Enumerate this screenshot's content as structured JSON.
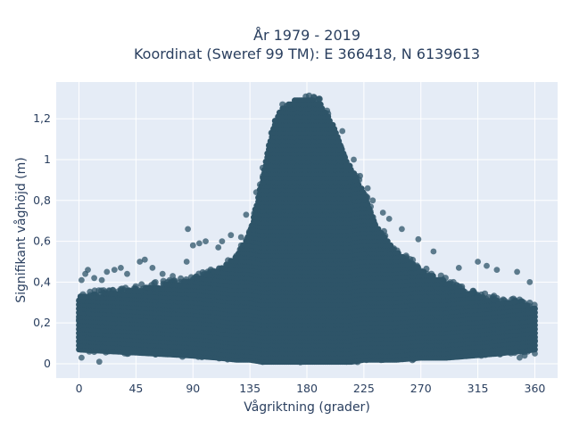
{
  "chart_data": {
    "type": "scatter",
    "title_lines": [
      "År 1979 - 2019",
      "Koordinat (Sweref 99 TM): E 366418, N 6139613"
    ],
    "xlabel": "Vågriktning (grader)",
    "ylabel": "Signifikant våghöjd (m)",
    "xlim": [
      -18,
      378
    ],
    "ylim": [
      -0.07,
      1.38
    ],
    "xticks": [
      0,
      45,
      90,
      135,
      180,
      225,
      270,
      315,
      360
    ],
    "xtick_labels": [
      "0",
      "45",
      "90",
      "135",
      "180",
      "225",
      "270",
      "315",
      "360"
    ],
    "yticks": [
      0,
      0.2,
      0.4,
      0.6,
      0.8,
      1.0,
      1.2
    ],
    "ytick_labels": [
      "0",
      "0,2",
      "0,4",
      "0,6",
      "0,8",
      "1",
      "1,2"
    ],
    "grid": true,
    "marker_color": "#2e5468",
    "plot_background": "#e5ecf6",
    "envelope": {
      "direction_deg": [
        0,
        30,
        60,
        90,
        110,
        125,
        135,
        145,
        150,
        155,
        160,
        170,
        180,
        190,
        200,
        210,
        215,
        225,
        235,
        250,
        270,
        290,
        310,
        330,
        345,
        360
      ],
      "upper_hs_m": [
        0.35,
        0.37,
        0.4,
        0.43,
        0.48,
        0.55,
        0.67,
        0.93,
        1.1,
        1.22,
        1.27,
        1.31,
        1.32,
        1.3,
        1.2,
        1.03,
        0.98,
        0.86,
        0.7,
        0.57,
        0.48,
        0.42,
        0.36,
        0.33,
        0.32,
        0.3
      ],
      "lower_hs_m": [
        0.06,
        0.05,
        0.04,
        0.03,
        0.02,
        0.01,
        0.01,
        0.0,
        0.0,
        0.0,
        0.0,
        0.0,
        0.0,
        0.0,
        0.0,
        0.0,
        0.0,
        0.01,
        0.01,
        0.01,
        0.02,
        0.02,
        0.03,
        0.04,
        0.05,
        0.06
      ]
    },
    "outliers": [
      {
        "x": 2,
        "y": 0.41
      },
      {
        "x": 5,
        "y": 0.44
      },
      {
        "x": 7,
        "y": 0.46
      },
      {
        "x": 12,
        "y": 0.42
      },
      {
        "x": 18,
        "y": 0.41
      },
      {
        "x": 22,
        "y": 0.45
      },
      {
        "x": 28,
        "y": 0.46
      },
      {
        "x": 33,
        "y": 0.47
      },
      {
        "x": 38,
        "y": 0.44
      },
      {
        "x": 48,
        "y": 0.5
      },
      {
        "x": 52,
        "y": 0.51
      },
      {
        "x": 58,
        "y": 0.47
      },
      {
        "x": 66,
        "y": 0.44
      },
      {
        "x": 74,
        "y": 0.43
      },
      {
        "x": 85,
        "y": 0.5
      },
      {
        "x": 90,
        "y": 0.58
      },
      {
        "x": 95,
        "y": 0.59
      },
      {
        "x": 100,
        "y": 0.6
      },
      {
        "x": 110,
        "y": 0.57
      },
      {
        "x": 113,
        "y": 0.6
      },
      {
        "x": 120,
        "y": 0.63
      },
      {
        "x": 128,
        "y": 0.62
      },
      {
        "x": 86,
        "y": 0.66
      },
      {
        "x": 16,
        "y": 0.01
      },
      {
        "x": 2,
        "y": 0.03
      },
      {
        "x": 315,
        "y": 0.5
      },
      {
        "x": 322,
        "y": 0.48
      },
      {
        "x": 330,
        "y": 0.46
      },
      {
        "x": 346,
        "y": 0.45
      },
      {
        "x": 356,
        "y": 0.4
      },
      {
        "x": 280,
        "y": 0.55
      },
      {
        "x": 268,
        "y": 0.61
      },
      {
        "x": 255,
        "y": 0.66
      },
      {
        "x": 245,
        "y": 0.71
      },
      {
        "x": 240,
        "y": 0.74
      },
      {
        "x": 232,
        "y": 0.8
      },
      {
        "x": 228,
        "y": 0.86
      },
      {
        "x": 222,
        "y": 0.92
      },
      {
        "x": 217,
        "y": 1.0
      },
      {
        "x": 208,
        "y": 1.14
      },
      {
        "x": 145,
        "y": 0.96
      },
      {
        "x": 140,
        "y": 0.84
      },
      {
        "x": 132,
        "y": 0.73
      },
      {
        "x": 300,
        "y": 0.47
      },
      {
        "x": 348,
        "y": 0.03
      },
      {
        "x": 352,
        "y": 0.04
      },
      {
        "x": 360,
        "y": 0.05
      }
    ]
  }
}
